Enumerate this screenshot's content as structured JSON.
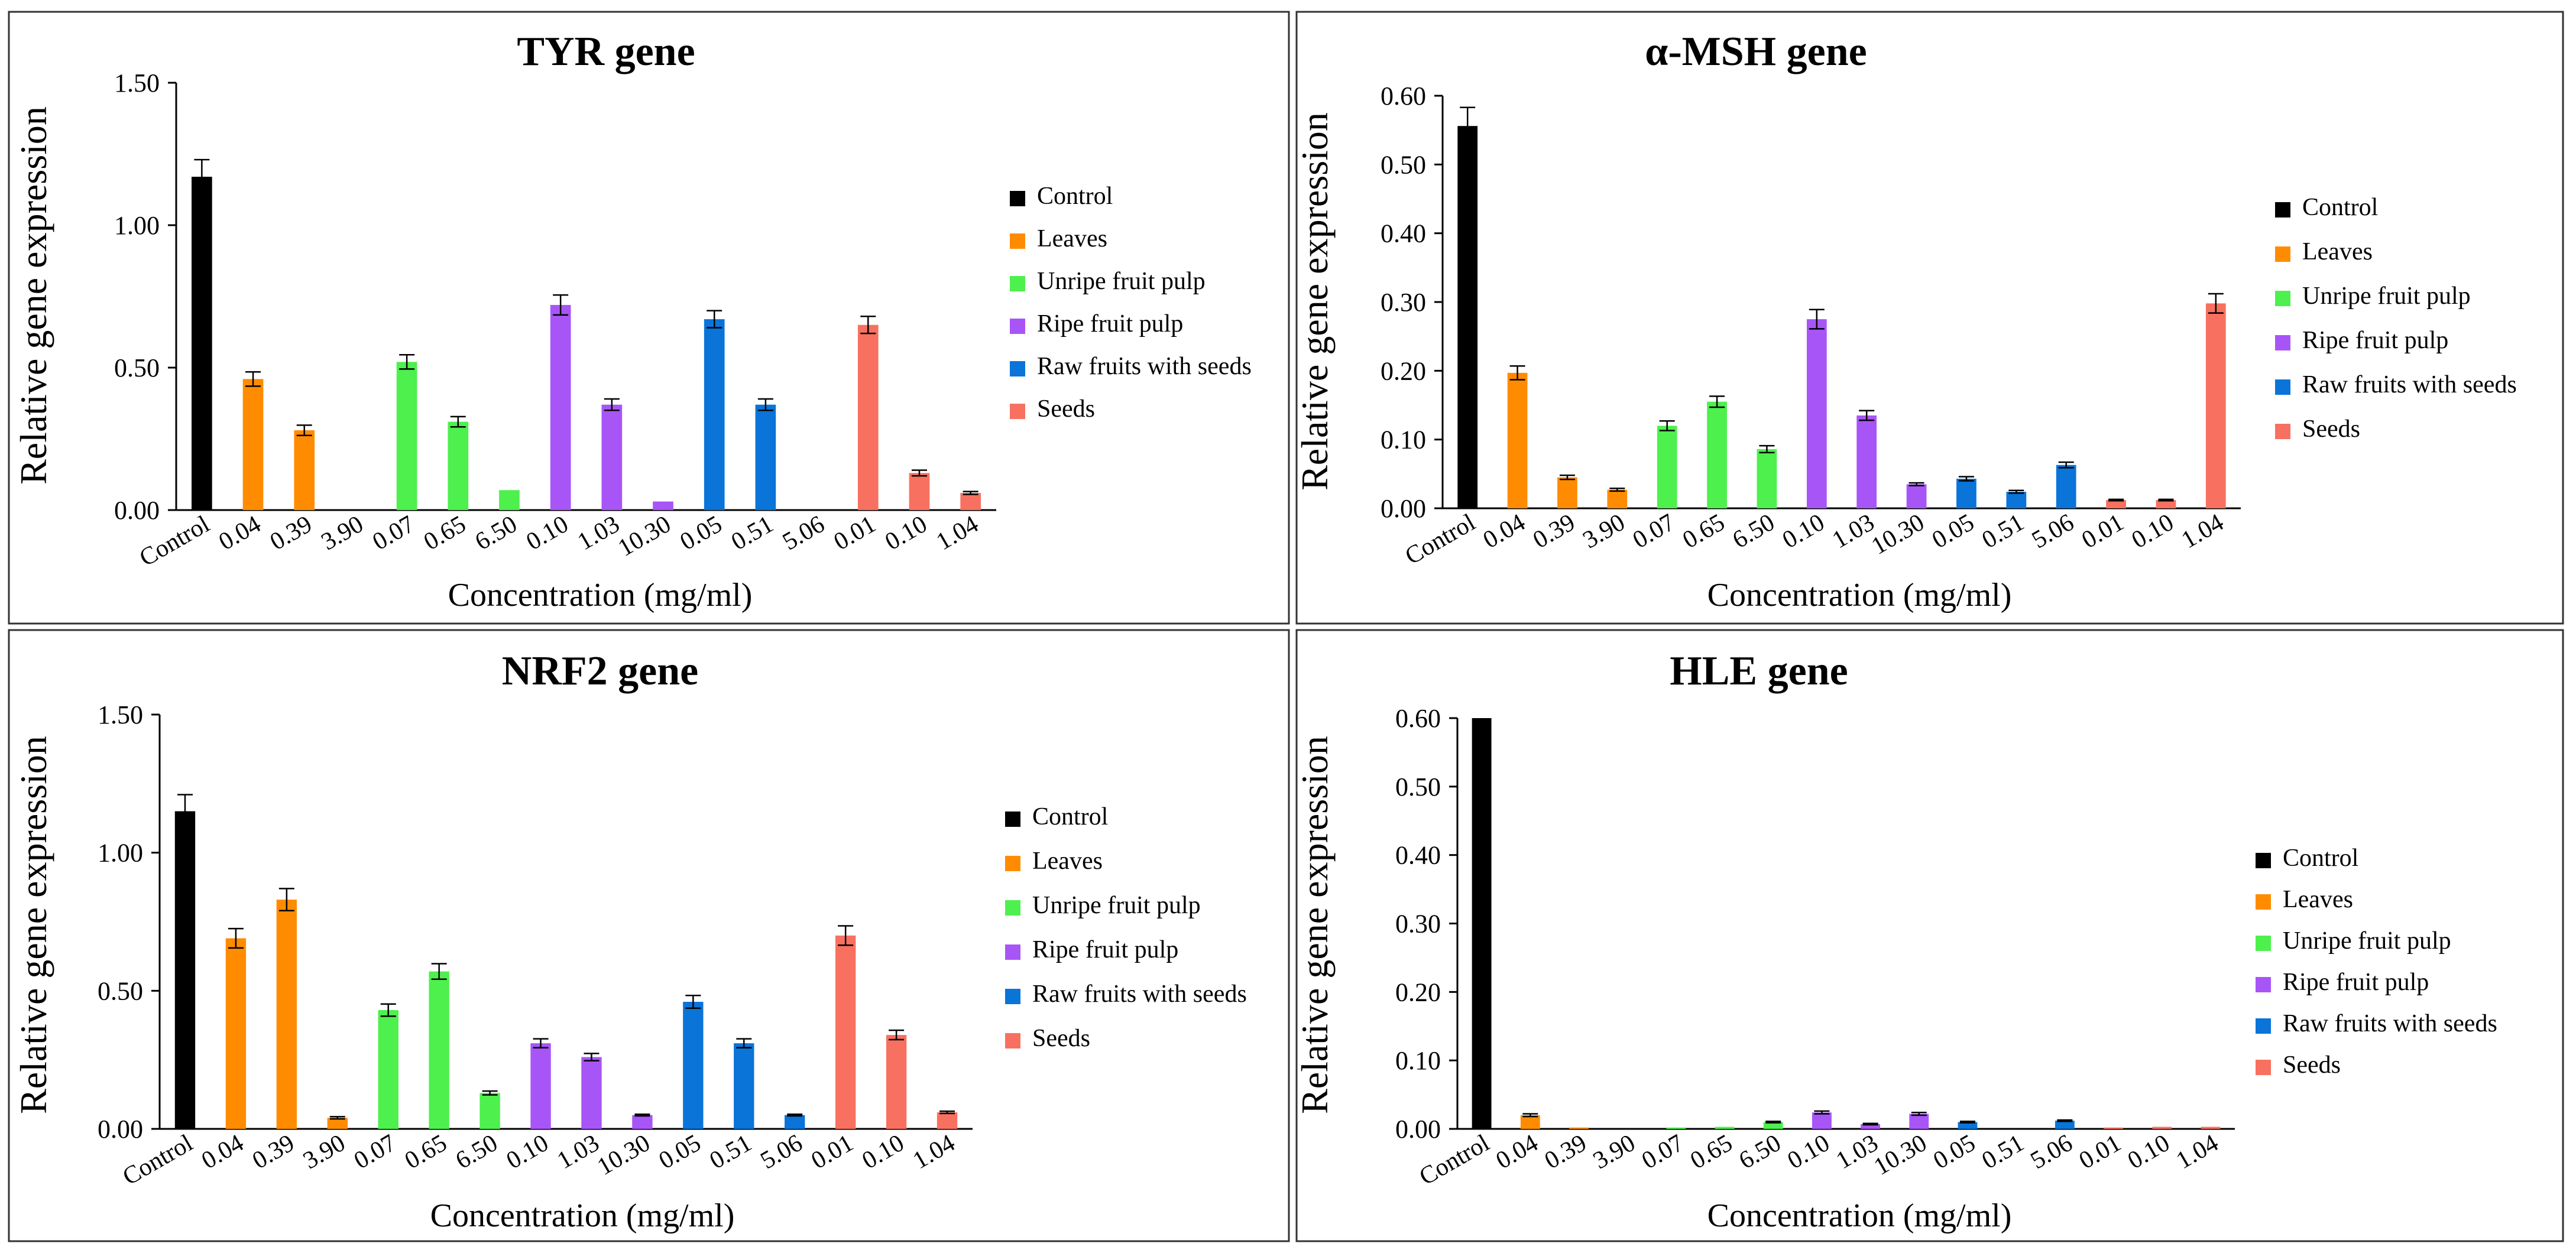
{
  "colors": {
    "Control": "#000000",
    "Leaves": "#ff8c00",
    "Unripe fruit pulp": "#4df04d",
    "Ripe fruit pulp": "#a855f7",
    "Raw fruits with seeds": "#0a74d8",
    "Seeds": "#f87060"
  },
  "chart_data": [
    {
      "type": "bar",
      "title": "TYR gene",
      "xlabel": "Concentration (mg/ml)",
      "ylabel": "Relative gene expression",
      "ylim": [
        0,
        1.5
      ],
      "yticks": [
        "0.00",
        "0.50",
        "1.00",
        "1.50"
      ],
      "categories": [
        "Control",
        "0.04",
        "0.39",
        "3.90",
        "0.07",
        "0.65",
        "6.50",
        "0.10",
        "1.03",
        "10.30",
        "0.05",
        "0.51",
        "5.06",
        "0.01",
        "0.10",
        "1.04"
      ],
      "groups": [
        "Control",
        "Leaves",
        "Leaves",
        "Leaves",
        "Unripe fruit pulp",
        "Unripe fruit pulp",
        "Unripe fruit pulp",
        "Ripe fruit pulp",
        "Ripe fruit pulp",
        "Ripe fruit pulp",
        "Raw fruits with seeds",
        "Raw fruits with seeds",
        "Raw fruits with seeds",
        "Seeds",
        "Seeds",
        "Seeds"
      ],
      "values": [
        1.17,
        0.46,
        0.28,
        0,
        0.52,
        0.31,
        0.07,
        0.72,
        0.37,
        0.03,
        0.67,
        0.37,
        0,
        0.65,
        0.13,
        0.06
      ],
      "errors": [
        0.06,
        0.025,
        0.018,
        0,
        0.025,
        0.018,
        0,
        0.035,
        0.02,
        0,
        0.03,
        0.02,
        0,
        0.03,
        0.01,
        0.005
      ],
      "legend": [
        "Control",
        "Leaves",
        "Unripe fruit pulp",
        "Ripe fruit pulp",
        "Raw fruits with seeds",
        "Seeds"
      ],
      "legend_position": "right"
    },
    {
      "type": "bar",
      "title": "α-MSH gene",
      "xlabel": "Concentration (mg/ml)",
      "ylabel": "Relative gene expression",
      "ylim": [
        0,
        0.6
      ],
      "yticks": [
        "0.00",
        "0.10",
        "0.20",
        "0.30",
        "0.40",
        "0.50",
        "0.60"
      ],
      "categories": [
        "Control",
        "0.04",
        "0.39",
        "3.90",
        "0.07",
        "0.65",
        "6.50",
        "0.10",
        "1.03",
        "10.30",
        "0.05",
        "0.51",
        "5.06",
        "0.01",
        "0.10",
        "1.04"
      ],
      "groups": [
        "Control",
        "Leaves",
        "Leaves",
        "Leaves",
        "Unripe fruit pulp",
        "Unripe fruit pulp",
        "Unripe fruit pulp",
        "Ripe fruit pulp",
        "Ripe fruit pulp",
        "Ripe fruit pulp",
        "Raw fruits with seeds",
        "Raw fruits with seeds",
        "Raw fruits with seeds",
        "Seeds",
        "Seeds",
        "Seeds"
      ],
      "values": [
        0.556,
        0.197,
        0.045,
        0.027,
        0.12,
        0.155,
        0.086,
        0.275,
        0.135,
        0.035,
        0.043,
        0.024,
        0.063,
        0.012,
        0.012,
        0.298
      ],
      "errors": [
        0.027,
        0.01,
        0.003,
        0.002,
        0.007,
        0.008,
        0.005,
        0.014,
        0.007,
        0.002,
        0.003,
        0.002,
        0.004,
        0.001,
        0.001,
        0.014
      ],
      "legend": [
        "Control",
        "Leaves",
        "Unripe fruit pulp",
        "Ripe fruit pulp",
        "Raw fruits with seeds",
        "Seeds"
      ],
      "legend_position": "right"
    },
    {
      "type": "bar",
      "title": "NRF2 gene",
      "xlabel": "Concentration (mg/ml)",
      "ylabel": "Relative gene expression",
      "ylim": [
        0,
        1.5
      ],
      "yticks": [
        "0.00",
        "0.50",
        "1.00",
        "1.50"
      ],
      "categories": [
        "Control",
        "0.04",
        "0.39",
        "3.90",
        "0.07",
        "0.65",
        "6.50",
        "0.10",
        "1.03",
        "10.30",
        "0.05",
        "0.51",
        "5.06",
        "0.01",
        "0.10",
        "1.04"
      ],
      "groups": [
        "Control",
        "Leaves",
        "Leaves",
        "Leaves",
        "Unripe fruit pulp",
        "Unripe fruit pulp",
        "Unripe fruit pulp",
        "Ripe fruit pulp",
        "Ripe fruit pulp",
        "Ripe fruit pulp",
        "Raw fruits with seeds",
        "Raw fruits with seeds",
        "Raw fruits with seeds",
        "Seeds",
        "Seeds",
        "Seeds"
      ],
      "values": [
        1.15,
        0.69,
        0.83,
        0.04,
        0.43,
        0.57,
        0.13,
        0.31,
        0.26,
        0.05,
        0.46,
        0.31,
        0.05,
        0.7,
        0.34,
        0.06
      ],
      "errors": [
        0.06,
        0.035,
        0.04,
        0.004,
        0.022,
        0.028,
        0.007,
        0.016,
        0.013,
        0.003,
        0.023,
        0.016,
        0.003,
        0.035,
        0.017,
        0.004
      ],
      "legend": [
        "Control",
        "Leaves",
        "Unripe fruit pulp",
        "Ripe fruit pulp",
        "Raw fruits with seeds",
        "Seeds"
      ],
      "legend_position": "right"
    },
    {
      "type": "bar",
      "title": "HLE gene",
      "xlabel": "Concentration (mg/ml)",
      "ylabel": "Relative gene expression",
      "ylim": [
        0,
        0.6
      ],
      "yticks": [
        "0.00",
        "0.10",
        "0.20",
        "0.30",
        "0.40",
        "0.50",
        "0.60"
      ],
      "categories": [
        "Control",
        "0.04",
        "0.39",
        "3.90",
        "0.07",
        "0.65",
        "6.50",
        "0.10",
        "1.03",
        "10.30",
        "0.05",
        "0.51",
        "5.06",
        "0.01",
        "0.10",
        "1.04"
      ],
      "groups": [
        "Control",
        "Leaves",
        "Leaves",
        "Leaves",
        "Unripe fruit pulp",
        "Unripe fruit pulp",
        "Unripe fruit pulp",
        "Ripe fruit pulp",
        "Ripe fruit pulp",
        "Ripe fruit pulp",
        "Raw fruits with seeds",
        "Raw fruits with seeds",
        "Raw fruits with seeds",
        "Seeds",
        "Seeds",
        "Seeds"
      ],
      "values": [
        0.6,
        0.02,
        0.002,
        0.0,
        0.002,
        0.003,
        0.01,
        0.024,
        0.007,
        0.022,
        0.01,
        0.0,
        0.012,
        0.002,
        0.003,
        0.003
      ],
      "errors": [
        0,
        0.002,
        0,
        0,
        0,
        0,
        0.001,
        0.002,
        0.001,
        0.002,
        0.001,
        0,
        0.001,
        0,
        0,
        0
      ],
      "legend": [
        "Control",
        "Leaves",
        "Unripe fruit pulp",
        "Ripe fruit pulp",
        "Raw fruits with seeds",
        "Seeds"
      ],
      "legend_position": "right"
    }
  ]
}
